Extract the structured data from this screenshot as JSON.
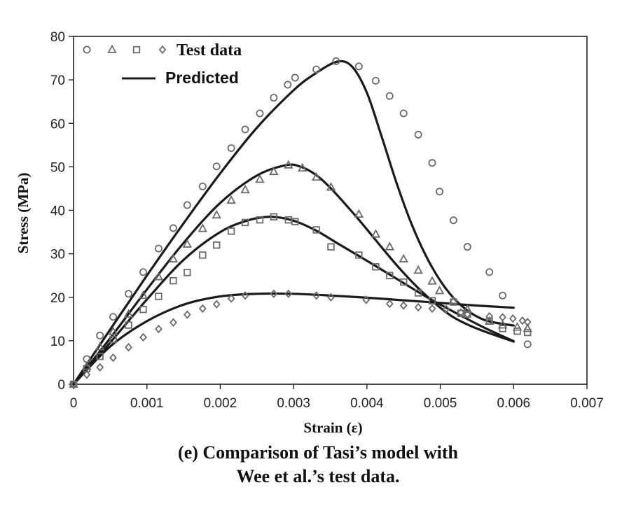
{
  "chart_data": {
    "type": "scatter",
    "xlabel": "Strain (ε)",
    "ylabel": "Stress (MPa)",
    "xlim": [
      0,
      0.007
    ],
    "ylim": [
      0,
      80
    ],
    "xticks": [
      "0",
      "0.001",
      "0.002",
      "0.003",
      "0.004",
      "0.005",
      "0.006",
      "0.007"
    ],
    "yticks": [
      "0",
      "10",
      "20",
      "30",
      "40",
      "50",
      "60",
      "70",
      "80"
    ],
    "grid": false,
    "legend": {
      "placement": "top-left",
      "entries": [
        {
          "label": "Test data",
          "markers": [
            "circle",
            "triangle",
            "square",
            "diamond"
          ]
        },
        {
          "label": "Predicted",
          "style": "line"
        }
      ]
    },
    "caption": [
      "(e) Comparison of Tasi’s model with",
      "Wee et al.’s test data."
    ],
    "test_series": [
      {
        "marker": "circle",
        "points": [
          [
            0,
            0
          ],
          [
            0.00018,
            5.8
          ],
          [
            0.00036,
            11.2
          ],
          [
            0.00054,
            15.5
          ],
          [
            0.00075,
            20.8
          ],
          [
            0.00095,
            25.8
          ],
          [
            0.00116,
            31.2
          ],
          [
            0.00136,
            35.9
          ],
          [
            0.00155,
            41.2
          ],
          [
            0.00176,
            45.5
          ],
          [
            0.00195,
            50.1
          ],
          [
            0.00215,
            54.3
          ],
          [
            0.00234,
            58.6
          ],
          [
            0.00254,
            62.3
          ],
          [
            0.00273,
            65.9
          ],
          [
            0.00292,
            68.9
          ],
          [
            0.00302,
            70.5
          ],
          [
            0.00331,
            72.4
          ],
          [
            0.00358,
            74.3
          ],
          [
            0.00389,
            73.1
          ],
          [
            0.00412,
            69.8
          ],
          [
            0.00431,
            66.3
          ],
          [
            0.0045,
            62.3
          ],
          [
            0.0047,
            57.4
          ],
          [
            0.00489,
            50.9
          ],
          [
            0.00499,
            44.3
          ],
          [
            0.00518,
            37.7
          ],
          [
            0.00537,
            31.6
          ],
          [
            0.00567,
            25.8
          ],
          [
            0.00585,
            20.4
          ],
          [
            0.00619,
            9.2
          ]
        ]
      },
      {
        "marker": "triangle",
        "points": [
          [
            0,
            0
          ],
          [
            0.00018,
            4.1
          ],
          [
            0.00036,
            8.6
          ],
          [
            0.00054,
            12.1
          ],
          [
            0.00075,
            16.1
          ],
          [
            0.00095,
            20.4
          ],
          [
            0.00116,
            24.7
          ],
          [
            0.00136,
            28.8
          ],
          [
            0.00155,
            32.2
          ],
          [
            0.00176,
            35.8
          ],
          [
            0.00195,
            38.9
          ],
          [
            0.00215,
            42.3
          ],
          [
            0.00234,
            44.7
          ],
          [
            0.00254,
            47.1
          ],
          [
            0.00273,
            48.9
          ],
          [
            0.00293,
            50.4
          ],
          [
            0.00312,
            49.7
          ],
          [
            0.00331,
            47.6
          ],
          [
            0.00351,
            45.3
          ],
          [
            0.00389,
            39.1
          ],
          [
            0.00412,
            34.5
          ],
          [
            0.00431,
            31.6
          ],
          [
            0.0045,
            28.8
          ],
          [
            0.0047,
            26.2
          ],
          [
            0.00489,
            23.7
          ],
          [
            0.00499,
            21.5
          ],
          [
            0.00518,
            19.2
          ],
          [
            0.00537,
            17.2
          ],
          [
            0.00567,
            14.5
          ],
          [
            0.00585,
            13.6
          ],
          [
            0.00605,
            13.1
          ],
          [
            0.00619,
            12.8
          ]
        ]
      },
      {
        "marker": "square",
        "points": [
          [
            0,
            0
          ],
          [
            0.00018,
            3.6
          ],
          [
            0.00036,
            6.4
          ],
          [
            0.00054,
            10.3
          ],
          [
            0.00075,
            13.6
          ],
          [
            0.00095,
            17.2
          ],
          [
            0.00116,
            20.2
          ],
          [
            0.00136,
            23.8
          ],
          [
            0.00155,
            25.7
          ],
          [
            0.00176,
            29.7
          ],
          [
            0.00195,
            32.0
          ],
          [
            0.00215,
            35.2
          ],
          [
            0.00234,
            37.2
          ],
          [
            0.00254,
            37.8
          ],
          [
            0.00273,
            38.5
          ],
          [
            0.00293,
            37.8
          ],
          [
            0.00302,
            37.4
          ],
          [
            0.00331,
            35.5
          ],
          [
            0.00351,
            31.6
          ],
          [
            0.00389,
            29.7
          ],
          [
            0.00412,
            27.0
          ],
          [
            0.00431,
            25.0
          ],
          [
            0.0045,
            23.5
          ],
          [
            0.0047,
            21.0
          ],
          [
            0.00489,
            19.2
          ],
          [
            0.00518,
            18.9
          ],
          [
            0.00528,
            16.3
          ],
          [
            0.00537,
            16.1
          ],
          [
            0.00567,
            14.5
          ],
          [
            0.00585,
            12.8
          ],
          [
            0.00605,
            12.2
          ],
          [
            0.00619,
            11.9
          ]
        ]
      },
      {
        "marker": "diamond",
        "points": [
          [
            0,
            0
          ],
          [
            0.00018,
            2.2
          ],
          [
            0.00036,
            3.9
          ],
          [
            0.00054,
            6.1
          ],
          [
            0.00075,
            8.5
          ],
          [
            0.00095,
            10.8
          ],
          [
            0.00116,
            12.7
          ],
          [
            0.00136,
            14.2
          ],
          [
            0.00155,
            16.0
          ],
          [
            0.00176,
            17.4
          ],
          [
            0.00195,
            18.4
          ],
          [
            0.00215,
            19.7
          ],
          [
            0.00234,
            20.4
          ],
          [
            0.00273,
            20.8
          ],
          [
            0.00293,
            20.8
          ],
          [
            0.00331,
            20.4
          ],
          [
            0.00351,
            20.0
          ],
          [
            0.00399,
            19.4
          ],
          [
            0.00431,
            18.5
          ],
          [
            0.0045,
            18.1
          ],
          [
            0.0047,
            17.7
          ],
          [
            0.00489,
            17.4
          ],
          [
            0.00508,
            17.3
          ],
          [
            0.00528,
            16.5
          ],
          [
            0.00537,
            16.1
          ],
          [
            0.00567,
            15.6
          ],
          [
            0.00585,
            15.4
          ],
          [
            0.00599,
            15.1
          ],
          [
            0.00612,
            14.6
          ],
          [
            0.00619,
            14.3
          ]
        ]
      }
    ],
    "predicted_series": [
      {
        "points": [
          [
            0,
            0
          ],
          [
            0.0005,
            12.6
          ],
          [
            0.001,
            25.0
          ],
          [
            0.0015,
            37.0
          ],
          [
            0.002,
            48.5
          ],
          [
            0.0025,
            59.0
          ],
          [
            0.003,
            67.6
          ],
          [
            0.0033,
            71.5
          ],
          [
            0.0036,
            74.2
          ],
          [
            0.0038,
            73.0
          ],
          [
            0.004,
            67.0
          ],
          [
            0.0042,
            57.0
          ],
          [
            0.0044,
            46.5
          ],
          [
            0.0046,
            37.2
          ],
          [
            0.0048,
            29.7
          ],
          [
            0.005,
            23.8
          ],
          [
            0.0052,
            19.5
          ],
          [
            0.0054,
            16.6
          ],
          [
            0.0056,
            14.8
          ],
          [
            0.0058,
            14.0
          ],
          [
            0.006,
            13.5
          ]
        ]
      },
      {
        "points": [
          [
            0,
            0
          ],
          [
            0.0005,
            10.6
          ],
          [
            0.001,
            21.8
          ],
          [
            0.0015,
            32.5
          ],
          [
            0.002,
            41.7
          ],
          [
            0.0025,
            48.0
          ],
          [
            0.0029,
            50.4
          ],
          [
            0.0031,
            50.0
          ],
          [
            0.0033,
            48.2
          ],
          [
            0.0035,
            45.2
          ],
          [
            0.0038,
            39.6
          ],
          [
            0.004,
            35.6
          ],
          [
            0.0042,
            31.5
          ],
          [
            0.0044,
            27.5
          ],
          [
            0.0046,
            23.8
          ],
          [
            0.0048,
            20.5
          ],
          [
            0.005,
            17.6
          ],
          [
            0.0052,
            15.2
          ],
          [
            0.0055,
            12.8
          ],
          [
            0.006,
            9.8
          ]
        ]
      },
      {
        "points": [
          [
            0,
            0
          ],
          [
            0.0005,
            9.6
          ],
          [
            0.001,
            19.5
          ],
          [
            0.0015,
            28.6
          ],
          [
            0.002,
            35.0
          ],
          [
            0.0024,
            37.8
          ],
          [
            0.0027,
            38.5
          ],
          [
            0.003,
            37.6
          ],
          [
            0.0033,
            35.4
          ],
          [
            0.0036,
            32.4
          ],
          [
            0.004,
            28.4
          ],
          [
            0.0044,
            24.3
          ],
          [
            0.0048,
            20.2
          ],
          [
            0.0052,
            16.5
          ],
          [
            0.0056,
            13.0
          ],
          [
            0.006,
            9.9
          ]
        ]
      },
      {
        "points": [
          [
            0,
            0
          ],
          [
            0.0005,
            8.7
          ],
          [
            0.001,
            14.5
          ],
          [
            0.0015,
            18.3
          ],
          [
            0.002,
            20.2
          ],
          [
            0.0025,
            20.8
          ],
          [
            0.003,
            20.8
          ],
          [
            0.0035,
            20.4
          ],
          [
            0.004,
            19.9
          ],
          [
            0.0045,
            19.3
          ],
          [
            0.005,
            18.7
          ],
          [
            0.0055,
            18.1
          ],
          [
            0.006,
            17.6
          ]
        ]
      }
    ]
  }
}
